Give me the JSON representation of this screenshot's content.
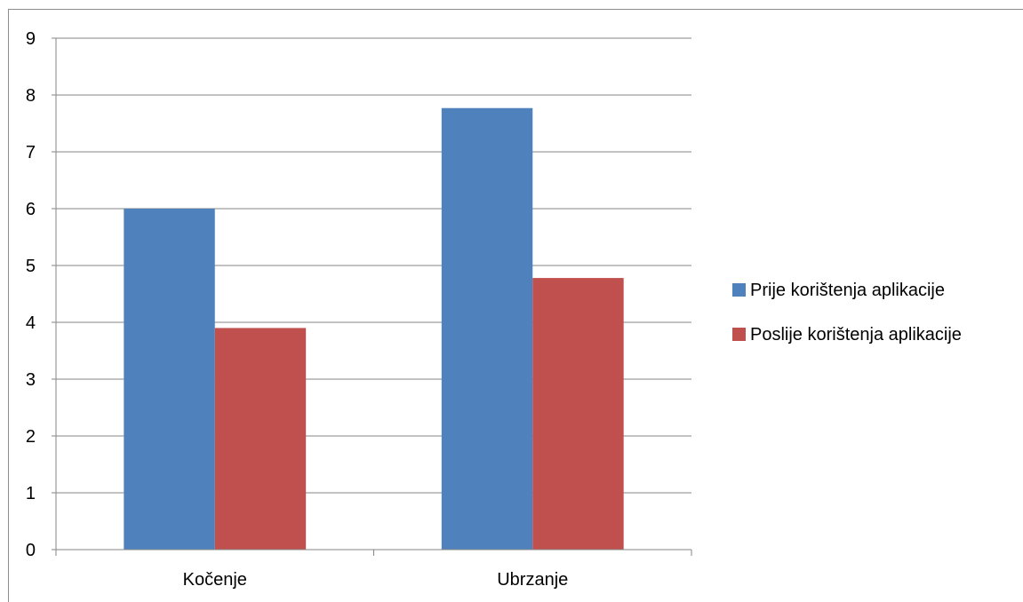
{
  "chart_data": {
    "type": "bar",
    "title": "",
    "xlabel": "",
    "ylabel": "",
    "categories": [
      "Kočenje",
      "Ubrzanje"
    ],
    "series": [
      {
        "name": "Prije korištenja aplikacije",
        "values": [
          6.0,
          7.77
        ],
        "color": "#4f81bd"
      },
      {
        "name": "Poslije korištenja aplikacije",
        "values": [
          3.9,
          4.78
        ],
        "color": "#c0504d"
      }
    ],
    "ylim": [
      0,
      9
    ],
    "yticks": [
      0,
      1,
      2,
      3,
      4,
      5,
      6,
      7,
      8,
      9
    ],
    "grid": true,
    "gridline_color": "#868686",
    "legend_position": "right"
  }
}
